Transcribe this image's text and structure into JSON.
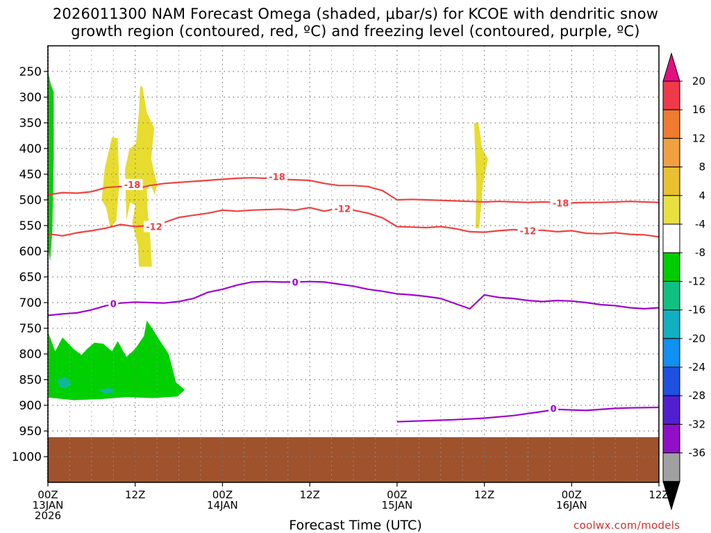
{
  "title": "2026011300 NAM Forecast Omega (shaded, μbar/s) for KCOE with dendritic snow\ngrowth region (contoured, red, ºC) and freezing level (contoured, purple, ºC)",
  "xlabel": "Forecast Time (UTC)",
  "credit": "coolwx.com/models",
  "chart_data": {
    "type": "time-height cross section",
    "y_axis": {
      "label": "",
      "ticks": [
        250,
        300,
        350,
        400,
        450,
        500,
        550,
        600,
        650,
        700,
        750,
        800,
        850,
        900,
        950,
        1000
      ],
      "range": [
        1050,
        200
      ],
      "units": "hPa"
    },
    "x_axis": {
      "ticks": [
        {
          "hour": 0,
          "lines": [
            "00Z",
            "13JAN",
            "2026"
          ]
        },
        {
          "hour": 12,
          "lines": [
            "12Z"
          ]
        },
        {
          "hour": 24,
          "lines": [
            "00Z",
            "14JAN"
          ]
        },
        {
          "hour": 36,
          "lines": [
            "12Z"
          ]
        },
        {
          "hour": 48,
          "lines": [
            "00Z",
            "15JAN"
          ]
        },
        {
          "hour": 60,
          "lines": [
            "12Z"
          ]
        },
        {
          "hour": 72,
          "lines": [
            "00Z",
            "16JAN"
          ]
        },
        {
          "hour": 84,
          "lines": [
            "12Z"
          ]
        }
      ],
      "range": [
        0,
        84
      ]
    },
    "colorbar": {
      "labels": [
        "20",
        "16",
        "12",
        "8",
        "4",
        "-4",
        "-8",
        "-12",
        "-16",
        "-20",
        "-24",
        "-28",
        "-32",
        "-36"
      ],
      "colors": [
        "#ef3a4a",
        "#f07a30",
        "#f0a040",
        "#e8c030",
        "#e8e040",
        "#ffffff",
        "#00cc00",
        "#10c080",
        "#10b0c0",
        "#1090f0",
        "#2050e0",
        "#5020d0",
        "#9010c8",
        "#a0a0a0"
      ],
      "top_arrow": "#e01080",
      "bottom_arrow": "#000000"
    },
    "contours": [
      {
        "name": "-18",
        "color": "#f04040",
        "points": [
          [
            0,
            490
          ],
          [
            2,
            486
          ],
          [
            4,
            487
          ],
          [
            6,
            484
          ],
          [
            8,
            476
          ],
          [
            10,
            474
          ],
          [
            12,
            479
          ],
          [
            14,
            472
          ],
          [
            16,
            468
          ],
          [
            18,
            466
          ],
          [
            20,
            464
          ],
          [
            22,
            462
          ],
          [
            24,
            460
          ],
          [
            26,
            458
          ],
          [
            28,
            457
          ],
          [
            30,
            458
          ],
          [
            32,
            460
          ],
          [
            34,
            461
          ],
          [
            36,
            462
          ],
          [
            38,
            468
          ],
          [
            40,
            472
          ],
          [
            42,
            472
          ],
          [
            44,
            474
          ],
          [
            46,
            482
          ],
          [
            48,
            500
          ],
          [
            50,
            499
          ],
          [
            52,
            500
          ],
          [
            54,
            501
          ],
          [
            56,
            502
          ],
          [
            58,
            503
          ],
          [
            60,
            504
          ],
          [
            62,
            503
          ],
          [
            64,
            504
          ],
          [
            66,
            505
          ],
          [
            68,
            504
          ],
          [
            70,
            505
          ],
          [
            72,
            506
          ],
          [
            74,
            505
          ],
          [
            76,
            505
          ],
          [
            78,
            504
          ],
          [
            80,
            503
          ],
          [
            82,
            504
          ],
          [
            84,
            505
          ]
        ],
        "labels": [
          [
            11.6,
            470
          ],
          [
            31.5,
            455
          ],
          [
            70.5,
            506
          ]
        ]
      },
      {
        "name": "-12",
        "color": "#f04040",
        "points": [
          [
            0,
            566
          ],
          [
            2,
            570
          ],
          [
            4,
            564
          ],
          [
            6,
            560
          ],
          [
            8,
            555
          ],
          [
            10,
            548
          ],
          [
            12,
            552
          ],
          [
            14,
            550
          ],
          [
            16,
            544
          ],
          [
            18,
            534
          ],
          [
            20,
            530
          ],
          [
            22,
            526
          ],
          [
            24,
            520
          ],
          [
            26,
            522
          ],
          [
            28,
            520
          ],
          [
            30,
            519
          ],
          [
            32,
            518
          ],
          [
            34,
            520
          ],
          [
            36,
            515
          ],
          [
            38,
            522
          ],
          [
            40,
            516
          ],
          [
            42,
            520
          ],
          [
            44,
            526
          ],
          [
            46,
            535
          ],
          [
            48,
            552
          ],
          [
            50,
            553
          ],
          [
            52,
            554
          ],
          [
            54,
            552
          ],
          [
            56,
            556
          ],
          [
            58,
            562
          ],
          [
            60,
            563
          ],
          [
            62,
            560
          ],
          [
            64,
            558
          ],
          [
            66,
            560
          ],
          [
            68,
            559
          ],
          [
            70,
            562
          ],
          [
            72,
            560
          ],
          [
            74,
            565
          ],
          [
            76,
            566
          ],
          [
            78,
            564
          ],
          [
            80,
            567
          ],
          [
            82,
            568
          ],
          [
            84,
            572
          ]
        ],
        "labels": [
          [
            14.6,
            552
          ],
          [
            40.5,
            517
          ],
          [
            66,
            560
          ]
        ]
      },
      {
        "name": "0",
        "color": "#a000d0",
        "points": [
          [
            0,
            725
          ],
          [
            2,
            722
          ],
          [
            4,
            720
          ],
          [
            6,
            714
          ],
          [
            8,
            706
          ],
          [
            10,
            701
          ],
          [
            12,
            699
          ],
          [
            14,
            700
          ],
          [
            16,
            701
          ],
          [
            18,
            698
          ],
          [
            20,
            692
          ],
          [
            22,
            680
          ],
          [
            24,
            674
          ],
          [
            26,
            666
          ],
          [
            28,
            660
          ],
          [
            30,
            659
          ],
          [
            32,
            660
          ],
          [
            34,
            660
          ],
          [
            36,
            659
          ],
          [
            38,
            660
          ],
          [
            40,
            664
          ],
          [
            42,
            668
          ],
          [
            44,
            674
          ],
          [
            46,
            678
          ],
          [
            48,
            683
          ],
          [
            50,
            685
          ],
          [
            52,
            688
          ],
          [
            54,
            692
          ],
          [
            56,
            702
          ],
          [
            58,
            712
          ],
          [
            60,
            685
          ],
          [
            62,
            690
          ],
          [
            64,
            692
          ],
          [
            66,
            696
          ],
          [
            68,
            698
          ],
          [
            70,
            696
          ],
          [
            72,
            697
          ],
          [
            74,
            700
          ],
          [
            76,
            704
          ],
          [
            78,
            706
          ],
          [
            80,
            710
          ],
          [
            82,
            712
          ],
          [
            84,
            710
          ]
        ],
        "labels": [
          [
            9,
            702
          ],
          [
            34,
            660
          ]
        ]
      },
      {
        "name": "0",
        "color": "#a000d0",
        "points": [
          [
            48,
            932
          ],
          [
            52,
            930
          ],
          [
            56,
            928
          ],
          [
            60,
            925
          ],
          [
            64,
            920
          ],
          [
            66,
            916
          ],
          [
            68,
            912
          ],
          [
            70,
            908
          ],
          [
            72,
            909
          ],
          [
            74,
            910
          ],
          [
            76,
            908
          ],
          [
            78,
            906
          ],
          [
            80,
            905
          ],
          [
            84,
            904
          ]
        ],
        "labels": [
          [
            69.5,
            906
          ]
        ]
      }
    ],
    "surface": {
      "color": "#a0522d",
      "top_hPa": 962
    }
  }
}
